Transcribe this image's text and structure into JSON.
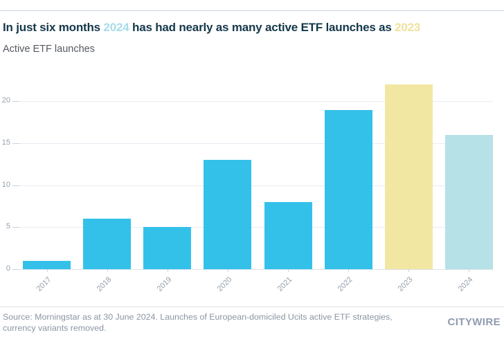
{
  "title": {
    "seg1": "In just six months ",
    "year1": "2024",
    "seg2": " has had nearly as many active ETF launches as ",
    "year2": "2023"
  },
  "subtitle": "Active ETF launches",
  "chart_data": {
    "type": "bar",
    "title": "In just six months 2024 has had nearly as many active ETF launches as 2023",
    "subtitle": "Active ETF launches",
    "categories": [
      "2017",
      "2018",
      "2019",
      "2020",
      "2021",
      "2022",
      "2023",
      "2024"
    ],
    "values": [
      1,
      6,
      5,
      13,
      8,
      19,
      22,
      16
    ],
    "bar_colors": [
      "#33c1ea",
      "#33c1ea",
      "#33c1ea",
      "#33c1ea",
      "#33c1ea",
      "#33c1ea",
      "#f2e6a3",
      "#b5e1e7"
    ],
    "xlabel": "",
    "ylabel": "",
    "yticks": [
      0,
      5,
      10,
      15,
      20
    ],
    "ylim": [
      0,
      23
    ],
    "grid": true,
    "legend": false,
    "highlight_colors": {
      "year_2024_title": "#a6dcea",
      "year_2023_title": "#eee29c"
    }
  },
  "footer": {
    "source": "Source: Morningstar as at 30 June 2024. Launches of European-domiciled Ucits active ETF strategies, currency variants removed.",
    "logo": "CITYWIRE"
  },
  "colors": {
    "title_text": "#14384a",
    "subtitle_text": "#54585e",
    "bar_cyan": "#33c1ea",
    "bar_yellow": "#f2e6a3",
    "bar_lightblue": "#b5e1e7",
    "gridline": "#e7edf3",
    "tick_text": "#98a1ae",
    "footer_text": "#8b95a4",
    "logo_text": "#8e9bb0"
  }
}
